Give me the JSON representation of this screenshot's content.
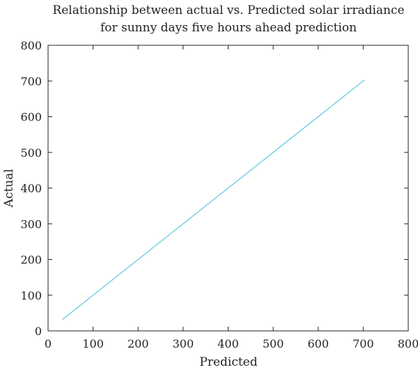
{
  "chart_data": {
    "type": "line",
    "title": [
      "Relationship between actual vs. Predicted solar irradiance",
      "for sunny days five hours ahead prediction"
    ],
    "xlabel": "Predicted",
    "ylabel": "Actual",
    "xlim": [
      0,
      800
    ],
    "ylim": [
      0,
      800
    ],
    "xticks": [
      0,
      100,
      200,
      300,
      400,
      500,
      600,
      700,
      800
    ],
    "yticks": [
      0,
      100,
      200,
      300,
      400,
      500,
      600,
      700,
      800
    ],
    "grid": false,
    "series": [
      {
        "x": [
          32,
          703
        ],
        "y": [
          32,
          703
        ],
        "color": "#5bc8dc"
      }
    ]
  }
}
